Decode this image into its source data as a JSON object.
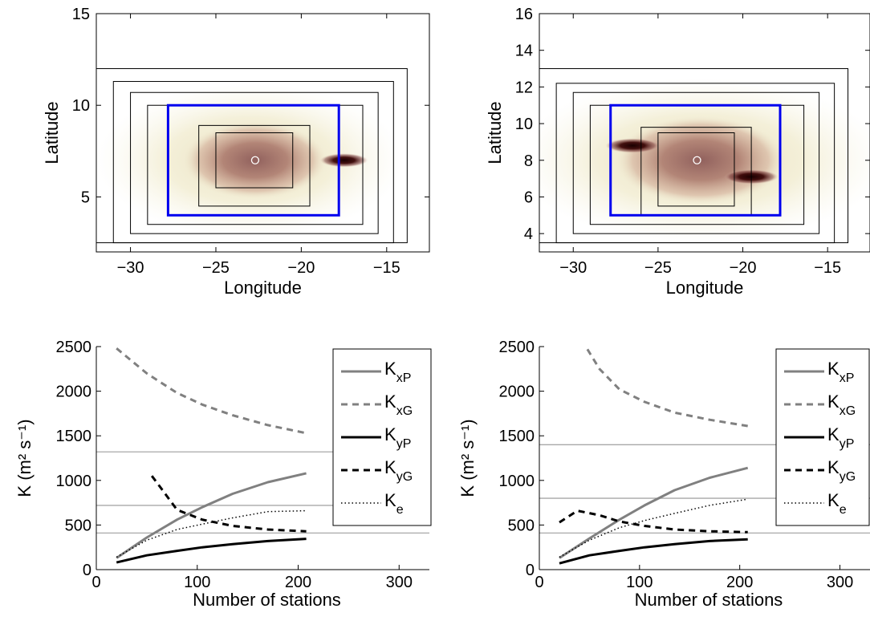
{
  "chart_data": [
    {
      "type": "heatmap",
      "xlabel": "Longitude",
      "ylabel": "Latitude",
      "xlim": [
        -32,
        -12.5
      ],
      "ylim": [
        2,
        15
      ],
      "xticks": [
        -30,
        -25,
        -20,
        -15
      ],
      "yticks": [
        5,
        10,
        15
      ],
      "ytick_labels": [
        "5",
        "10",
        "15"
      ],
      "center": [
        -22.7,
        7
      ],
      "blobs": [
        {
          "x": -22.7,
          "y": 7,
          "rx": 4.2,
          "ry": 2.1,
          "strength": 0.55
        },
        {
          "x": -17.5,
          "y": 7,
          "rx": 1.4,
          "ry": 0.38,
          "strength": 1.0
        },
        {
          "x": -23,
          "y": 7,
          "rx": 9,
          "ry": 4.2,
          "strength": 0.3
        }
      ],
      "boxes_black": [
        [
          -32,
          -13.8,
          2.5,
          12
        ],
        [
          -31,
          -14.6,
          2.5,
          11.3
        ],
        [
          -30,
          -15.5,
          3,
          10.7
        ],
        [
          -29,
          -16.4,
          3.5,
          10
        ],
        [
          -26,
          -19.5,
          4.5,
          8.9
        ],
        [
          -25,
          -20.5,
          5.5,
          8.5
        ]
      ],
      "box_blue": [
        -27.8,
        -17.8,
        4,
        10
      ]
    },
    {
      "type": "heatmap",
      "xlabel": "Longitude",
      "ylabel": "Latitude",
      "xlim": [
        -32,
        -12.5
      ],
      "ylim": [
        3,
        16
      ],
      "xticks": [
        -30,
        -25,
        -20,
        -15
      ],
      "yticks": [
        4,
        6,
        8,
        10,
        12,
        14,
        16
      ],
      "ytick_labels": [
        "4",
        "6",
        "8",
        "10",
        "12",
        "14",
        "16"
      ],
      "center": [
        -22.7,
        8
      ],
      "blobs": [
        {
          "x": -22.5,
          "y": 8,
          "rx": 5,
          "ry": 2.4,
          "strength": 0.6
        },
        {
          "x": -26.5,
          "y": 8.8,
          "rx": 1.6,
          "ry": 0.4,
          "strength": 1.0
        },
        {
          "x": -19.5,
          "y": 7.1,
          "rx": 1.6,
          "ry": 0.4,
          "strength": 1.0
        },
        {
          "x": -22.5,
          "y": 8,
          "rx": 11,
          "ry": 4.5,
          "strength": 0.35
        }
      ],
      "boxes_black": [
        [
          -32,
          -13.8,
          3.5,
          13
        ],
        [
          -31,
          -14.6,
          3.5,
          12.2
        ],
        [
          -30,
          -15.5,
          4,
          11.7
        ],
        [
          -29,
          -16.4,
          4.5,
          11
        ],
        [
          -26,
          -19.5,
          5,
          9.8
        ],
        [
          -25,
          -20.5,
          5.5,
          9.5
        ]
      ],
      "box_blue": [
        -27.8,
        -17.8,
        5,
        11
      ]
    },
    {
      "type": "line",
      "xlabel": "Number of stations",
      "ylabel": "K (m² s⁻¹)",
      "xlim": [
        0,
        330
      ],
      "ylim": [
        0,
        2500
      ],
      "xticks": [
        0,
        100,
        200,
        300
      ],
      "yticks": [
        0,
        500,
        1000,
        1500,
        2000,
        2500
      ],
      "hlines": [
        1320,
        720,
        410
      ],
      "series": [
        {
          "name": "KxP",
          "base": "K",
          "sub": "xP",
          "color": "#808080",
          "dash": "",
          "width": 3,
          "points": [
            [
              20,
              130
            ],
            [
              50,
              360
            ],
            [
              80,
              560
            ],
            [
              105,
              700
            ],
            [
              135,
              850
            ],
            [
              170,
              980
            ],
            [
              208,
              1080
            ]
          ]
        },
        {
          "name": "KxG",
          "base": "K",
          "sub": "xG",
          "color": "#808080",
          "dash": "8,6",
          "width": 3,
          "points": [
            [
              20,
              2480
            ],
            [
              50,
              2200
            ],
            [
              80,
              1980
            ],
            [
              105,
              1850
            ],
            [
              135,
              1730
            ],
            [
              170,
              1620
            ],
            [
              208,
              1530
            ]
          ]
        },
        {
          "name": "KyP",
          "base": "K",
          "sub": "yP",
          "color": "#000000",
          "dash": "",
          "width": 3,
          "points": [
            [
              20,
              80
            ],
            [
              50,
              160
            ],
            [
              80,
              210
            ],
            [
              105,
              250
            ],
            [
              135,
              285
            ],
            [
              170,
              320
            ],
            [
              208,
              345
            ]
          ]
        },
        {
          "name": "KyG",
          "base": "K",
          "sub": "yG",
          "color": "#000000",
          "dash": "8,6",
          "width": 3,
          "points": [
            [
              55,
              1050
            ],
            [
              65,
              900
            ],
            [
              80,
              670
            ],
            [
              105,
              560
            ],
            [
              135,
              490
            ],
            [
              170,
              450
            ],
            [
              208,
              430
            ]
          ]
        },
        {
          "name": "Ke",
          "base": "K",
          "sub": "e",
          "color": "#000000",
          "dash": "1.5,3",
          "width": 1.5,
          "points": [
            [
              20,
              140
            ],
            [
              50,
              330
            ],
            [
              80,
              450
            ],
            [
              105,
              510
            ],
            [
              135,
              580
            ],
            [
              170,
              650
            ],
            [
              208,
              660
            ]
          ]
        }
      ]
    },
    {
      "type": "line",
      "xlabel": "Number of stations",
      "ylabel": "K (m² s⁻¹)",
      "xlim": [
        0,
        330
      ],
      "ylim": [
        0,
        2500
      ],
      "xticks": [
        0,
        100,
        200,
        300
      ],
      "yticks": [
        0,
        500,
        1000,
        1500,
        2000,
        2500
      ],
      "hlines": [
        1400,
        800,
        410
      ],
      "series": [
        {
          "name": "KxP",
          "base": "K",
          "sub": "xP",
          "color": "#808080",
          "dash": "",
          "width": 3,
          "points": [
            [
              20,
              130
            ],
            [
              50,
              350
            ],
            [
              80,
              560
            ],
            [
              105,
              720
            ],
            [
              135,
              890
            ],
            [
              170,
              1030
            ],
            [
              208,
              1140
            ]
          ]
        },
        {
          "name": "KxG",
          "base": "K",
          "sub": "xG",
          "color": "#808080",
          "dash": "8,6",
          "width": 3,
          "points": [
            [
              48,
              2470
            ],
            [
              60,
              2250
            ],
            [
              80,
              2020
            ],
            [
              105,
              1880
            ],
            [
              135,
              1760
            ],
            [
              170,
              1680
            ],
            [
              208,
              1610
            ]
          ]
        },
        {
          "name": "KyP",
          "base": "K",
          "sub": "yP",
          "color": "#000000",
          "dash": "",
          "width": 3,
          "points": [
            [
              20,
              70
            ],
            [
              50,
              160
            ],
            [
              80,
              210
            ],
            [
              105,
              250
            ],
            [
              135,
              285
            ],
            [
              170,
              320
            ],
            [
              208,
              340
            ]
          ]
        },
        {
          "name": "KyG",
          "base": "K",
          "sub": "yG",
          "color": "#000000",
          "dash": "8,6",
          "width": 3,
          "points": [
            [
              20,
              530
            ],
            [
              38,
              660
            ],
            [
              60,
              610
            ],
            [
              80,
              540
            ],
            [
              105,
              490
            ],
            [
              135,
              450
            ],
            [
              170,
              430
            ],
            [
              208,
              420
            ]
          ]
        },
        {
          "name": "Ke",
          "base": "K",
          "sub": "e",
          "color": "#000000",
          "dash": "1.5,3",
          "width": 1.5,
          "points": [
            [
              20,
              140
            ],
            [
              50,
              330
            ],
            [
              80,
              470
            ],
            [
              105,
              550
            ],
            [
              135,
              630
            ],
            [
              170,
              720
            ],
            [
              208,
              790
            ]
          ]
        }
      ]
    }
  ]
}
